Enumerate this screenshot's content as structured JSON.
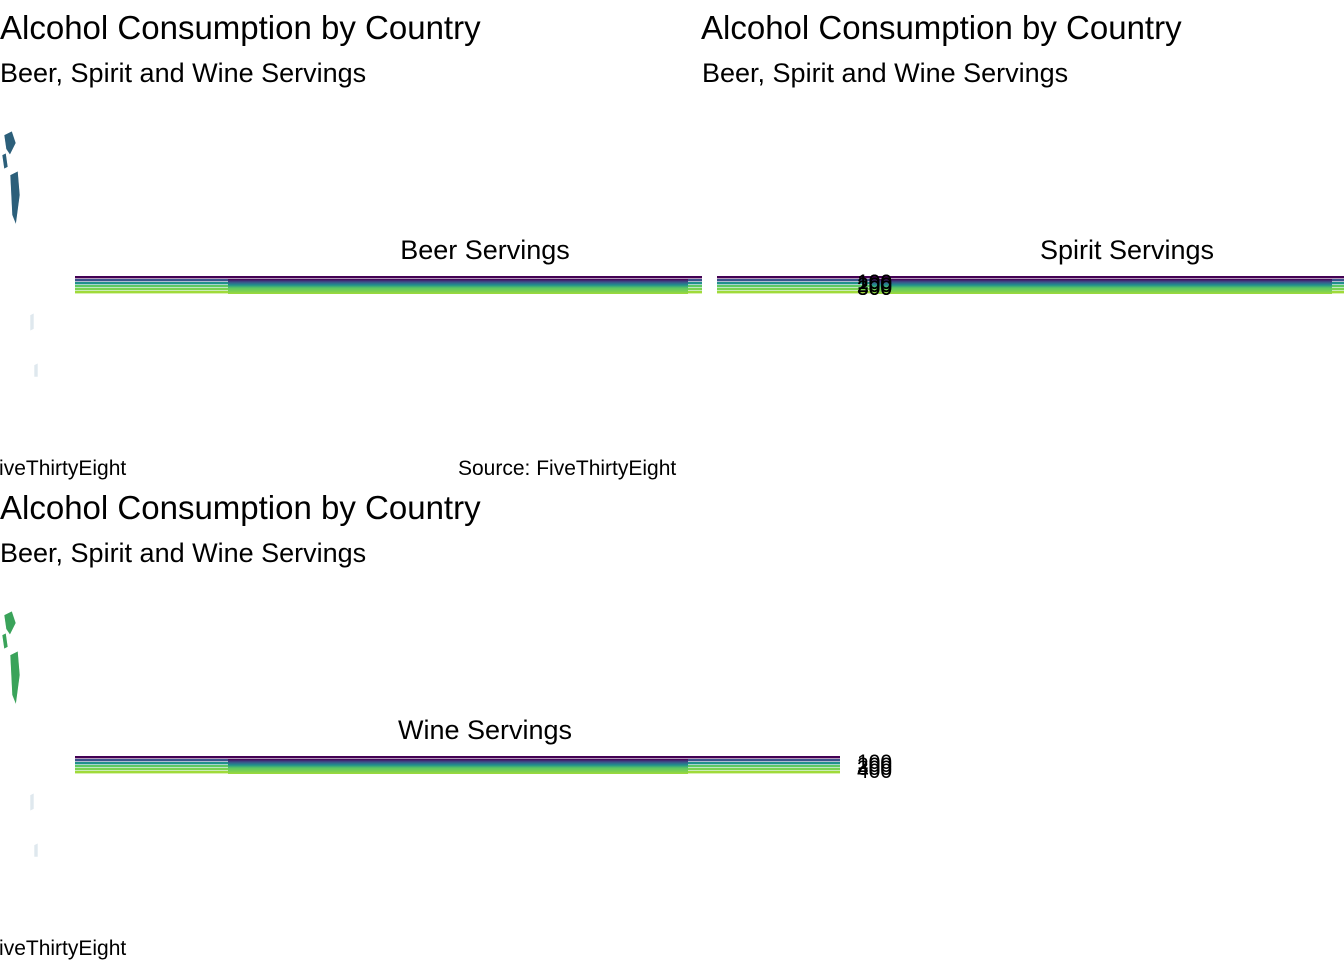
{
  "chart_data": [
    {
      "type": "other",
      "title": "Alcohol Consumption by Country",
      "subtitle": "Beer, Spirit and Wine Servings",
      "legend_title": "Beer Servings",
      "caption": "Source: FiveThirtyEight",
      "legend_ticks": [
        "100",
        "200",
        "300"
      ],
      "palette": [
        "#440154",
        "#3b528b",
        "#21908c",
        "#5dc863",
        "#7ad151",
        "#a0da39"
      ],
      "map_color": "#2c5f7a"
    },
    {
      "type": "other",
      "title": "Alcohol Consumption by Country",
      "subtitle": "Beer, Spirit and Wine Servings",
      "legend_title": "Spirit Servings",
      "caption": "Source: FiveThirtyEight",
      "legend_ticks": [
        "100",
        "200",
        "300"
      ],
      "palette": [
        "#440154",
        "#3b528b",
        "#21908c",
        "#5dc863",
        "#7ad151",
        "#a0da39"
      ],
      "map_color": "#2c5f7a"
    },
    {
      "type": "other",
      "title": "Alcohol Consumption by Country",
      "subtitle": "Beer, Spirit and Wine Servings",
      "legend_title": "Wine Servings",
      "caption": "Source: FiveThirtyEight",
      "legend_ticks": [
        "100",
        "200",
        "300",
        "400"
      ],
      "palette": [
        "#440154",
        "#3b528b",
        "#21908c",
        "#5dc863",
        "#7ad151",
        "#a0da39"
      ],
      "map_color": "#3aa35a"
    }
  ]
}
